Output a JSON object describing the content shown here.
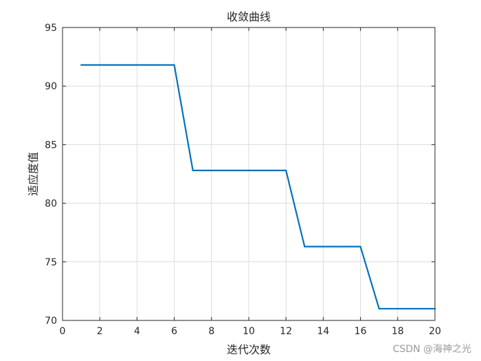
{
  "chart_data": {
    "type": "line",
    "title": "收敛曲线",
    "xlabel": "迭代次数",
    "ylabel": "适应度值",
    "xlim": [
      0,
      20
    ],
    "ylim": [
      70,
      95
    ],
    "xticks": [
      0,
      2,
      4,
      6,
      8,
      10,
      12,
      14,
      16,
      18,
      20
    ],
    "yticks": [
      70,
      75,
      80,
      85,
      90,
      95
    ],
    "grid": true,
    "series": [
      {
        "color": "#0072BD",
        "x": [
          1,
          2,
          3,
          4,
          5,
          6,
          7,
          8,
          9,
          10,
          11,
          12,
          13,
          14,
          15,
          16,
          17,
          18,
          19,
          20
        ],
        "y": [
          91.8,
          91.8,
          91.8,
          91.8,
          91.8,
          91.8,
          82.8,
          82.8,
          82.8,
          82.8,
          82.8,
          82.8,
          76.3,
          76.3,
          76.3,
          76.3,
          71.0,
          71.0,
          71.0,
          71.0
        ]
      }
    ]
  },
  "watermark": "CSDN @海神之光"
}
